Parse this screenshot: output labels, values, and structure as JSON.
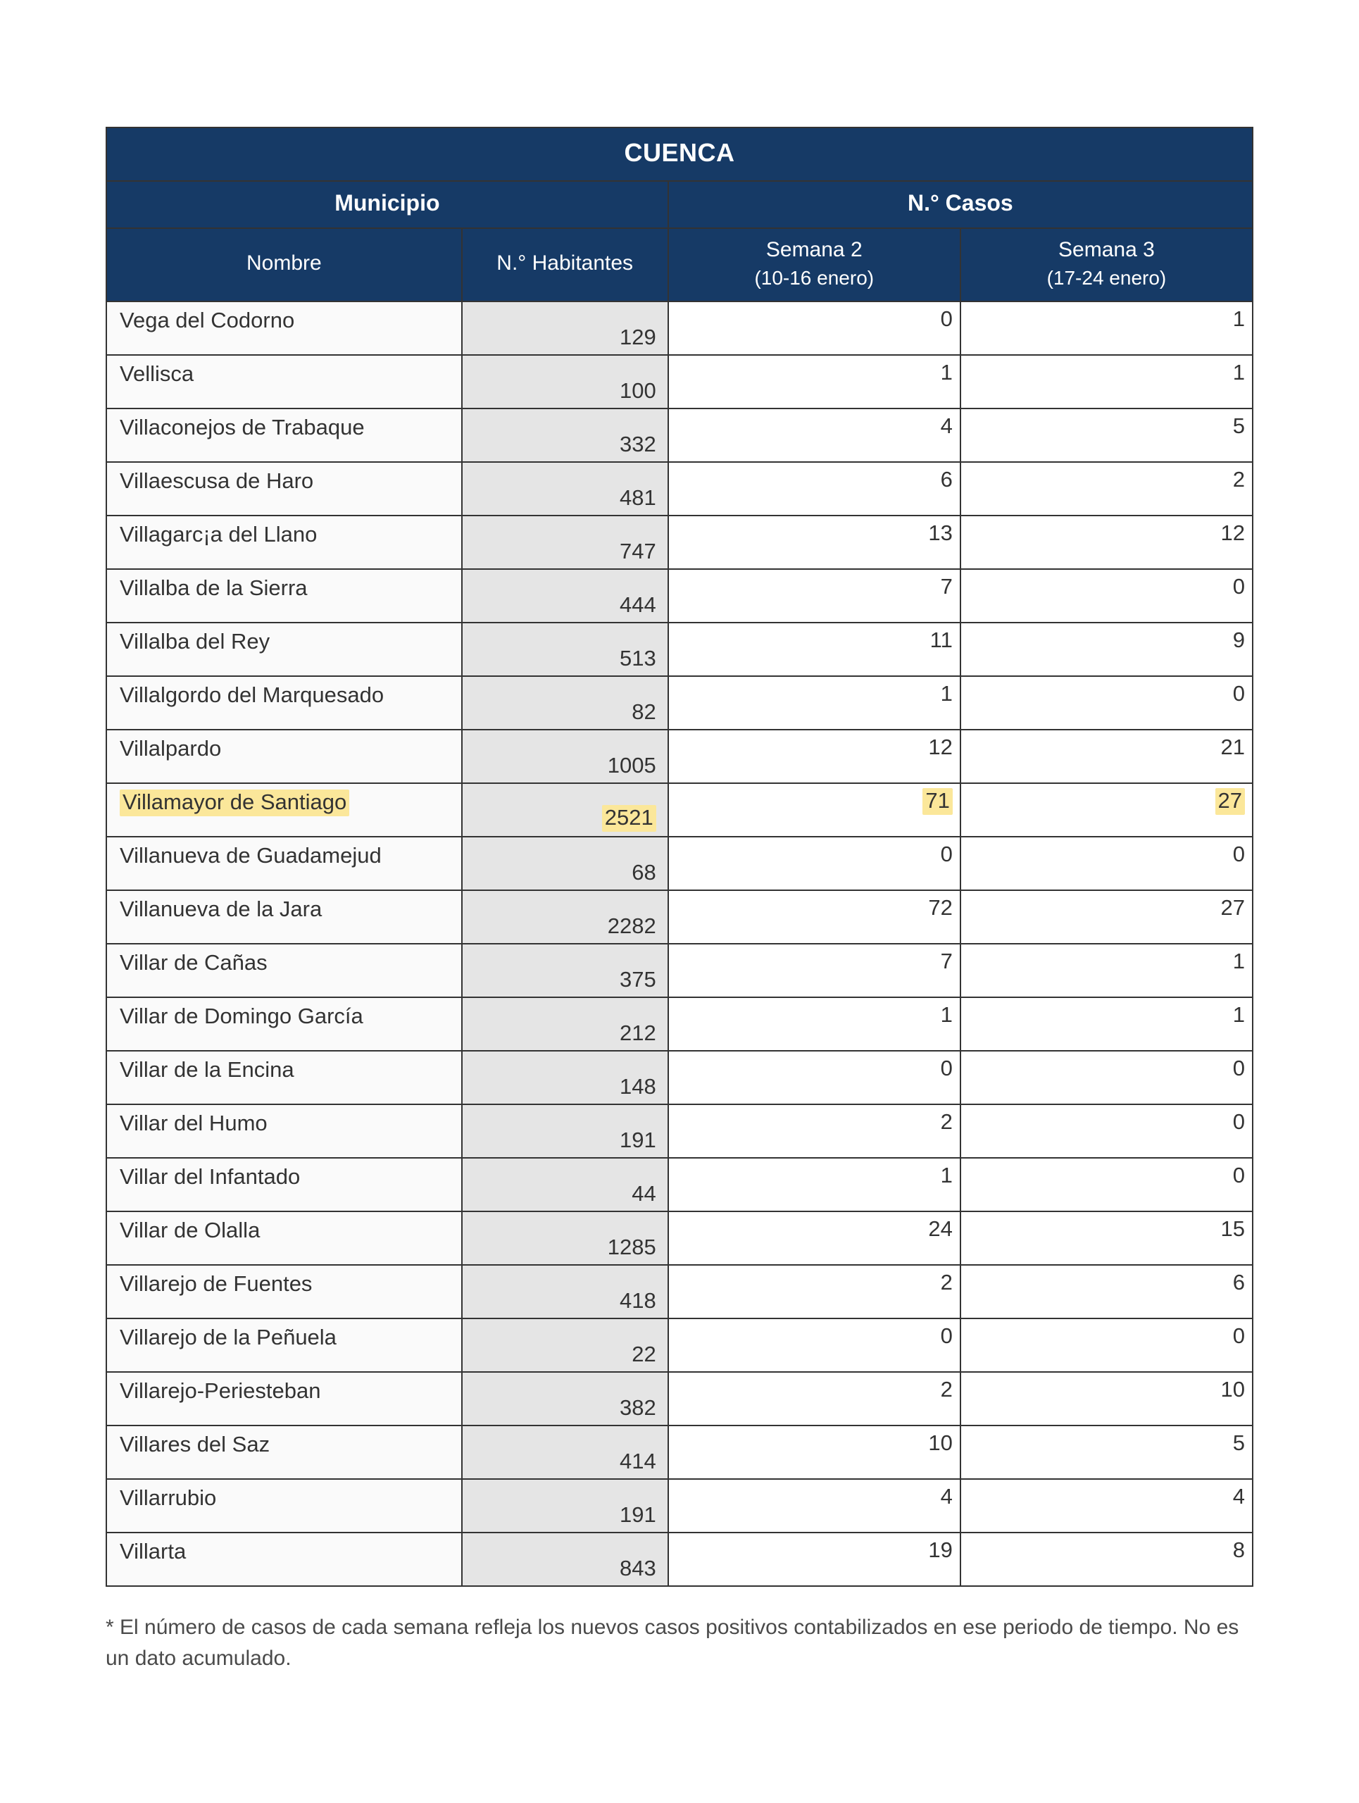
{
  "table": {
    "title": "CUENCA",
    "group_headers": {
      "municipio": "Municipio",
      "casos": "N.° Casos"
    },
    "sub_headers": {
      "nombre": "Nombre",
      "habitantes": "N.° Habitantes",
      "semana2_label": "Semana 2",
      "semana2_range": "(10-16 enero)",
      "semana3_label": "Semana 3",
      "semana3_range": "(17-24 enero)"
    },
    "col_widths": {
      "nombre": "31%",
      "habitantes": "18%",
      "semana2": "25.5%",
      "semana3": "25.5%"
    },
    "highlight_row_index": 9,
    "colors": {
      "header_bg": "#163a66",
      "header_text": "#ffffff",
      "nombre_bg": "#fafafa",
      "habitantes_bg": "#e5e5e5",
      "cases_bg": "#ffffff",
      "border": "#333333",
      "highlight_bg": "#fbe79a",
      "text": "#333333",
      "footnote_text": "#4a4a4a"
    },
    "font_sizes": {
      "title": 36,
      "group_header": 32,
      "sub_header": 30,
      "cell": 31,
      "footnote": 30
    },
    "rows": [
      {
        "nombre": "Vega del Codorno",
        "habitantes": "129",
        "s2": "0",
        "s3": "1"
      },
      {
        "nombre": "Vellisca",
        "habitantes": "100",
        "s2": "1",
        "s3": "1"
      },
      {
        "nombre": "Villaconejos de Trabaque",
        "habitantes": "332",
        "s2": "4",
        "s3": "5"
      },
      {
        "nombre": "Villaescusa de Haro",
        "habitantes": "481",
        "s2": "6",
        "s3": "2"
      },
      {
        "nombre": "Villagarc¡a del Llano",
        "habitantes": "747",
        "s2": "13",
        "s3": "12"
      },
      {
        "nombre": "Villalba de la Sierra",
        "habitantes": "444",
        "s2": "7",
        "s3": "0"
      },
      {
        "nombre": "Villalba del Rey",
        "habitantes": "513",
        "s2": "11",
        "s3": "9"
      },
      {
        "nombre": "Villalgordo del Marquesado",
        "habitantes": "82",
        "s2": "1",
        "s3": "0"
      },
      {
        "nombre": "Villalpardo",
        "habitantes": "1005",
        "s2": "12",
        "s3": "21"
      },
      {
        "nombre": "Villamayor de Santiago",
        "habitantes": "2521",
        "s2": "71",
        "s3": "27"
      },
      {
        "nombre": "Villanueva de Guadamejud",
        "habitantes": "68",
        "s2": "0",
        "s3": "0"
      },
      {
        "nombre": "Villanueva de la Jara",
        "habitantes": "2282",
        "s2": "72",
        "s3": "27"
      },
      {
        "nombre": "Villar de Cañas",
        "habitantes": "375",
        "s2": "7",
        "s3": "1"
      },
      {
        "nombre": "Villar de Domingo García",
        "habitantes": "212",
        "s2": "1",
        "s3": "1"
      },
      {
        "nombre": "Villar de la Encina",
        "habitantes": "148",
        "s2": "0",
        "s3": "0"
      },
      {
        "nombre": "Villar del Humo",
        "habitantes": "191",
        "s2": "2",
        "s3": "0"
      },
      {
        "nombre": "Villar del Infantado",
        "habitantes": "44",
        "s2": "1",
        "s3": "0"
      },
      {
        "nombre": "Villar de Olalla",
        "habitantes": "1285",
        "s2": "24",
        "s3": "15"
      },
      {
        "nombre": "Villarejo de Fuentes",
        "habitantes": "418",
        "s2": "2",
        "s3": "6"
      },
      {
        "nombre": "Villarejo de la Peñuela",
        "habitantes": "22",
        "s2": "0",
        "s3": "0"
      },
      {
        "nombre": "Villarejo-Periesteban",
        "habitantes": "382",
        "s2": "2",
        "s3": "10"
      },
      {
        "nombre": "Villares del Saz",
        "habitantes": "414",
        "s2": "10",
        "s3": "5"
      },
      {
        "nombre": "Villarrubio",
        "habitantes": "191",
        "s2": "4",
        "s3": "4"
      },
      {
        "nombre": "Villarta",
        "habitantes": "843",
        "s2": "19",
        "s3": "8"
      }
    ]
  },
  "footnote": "* El número de casos de cada semana refleja los nuevos casos positivos contabilizados en ese periodo de tiempo. No es un dato acumulado."
}
